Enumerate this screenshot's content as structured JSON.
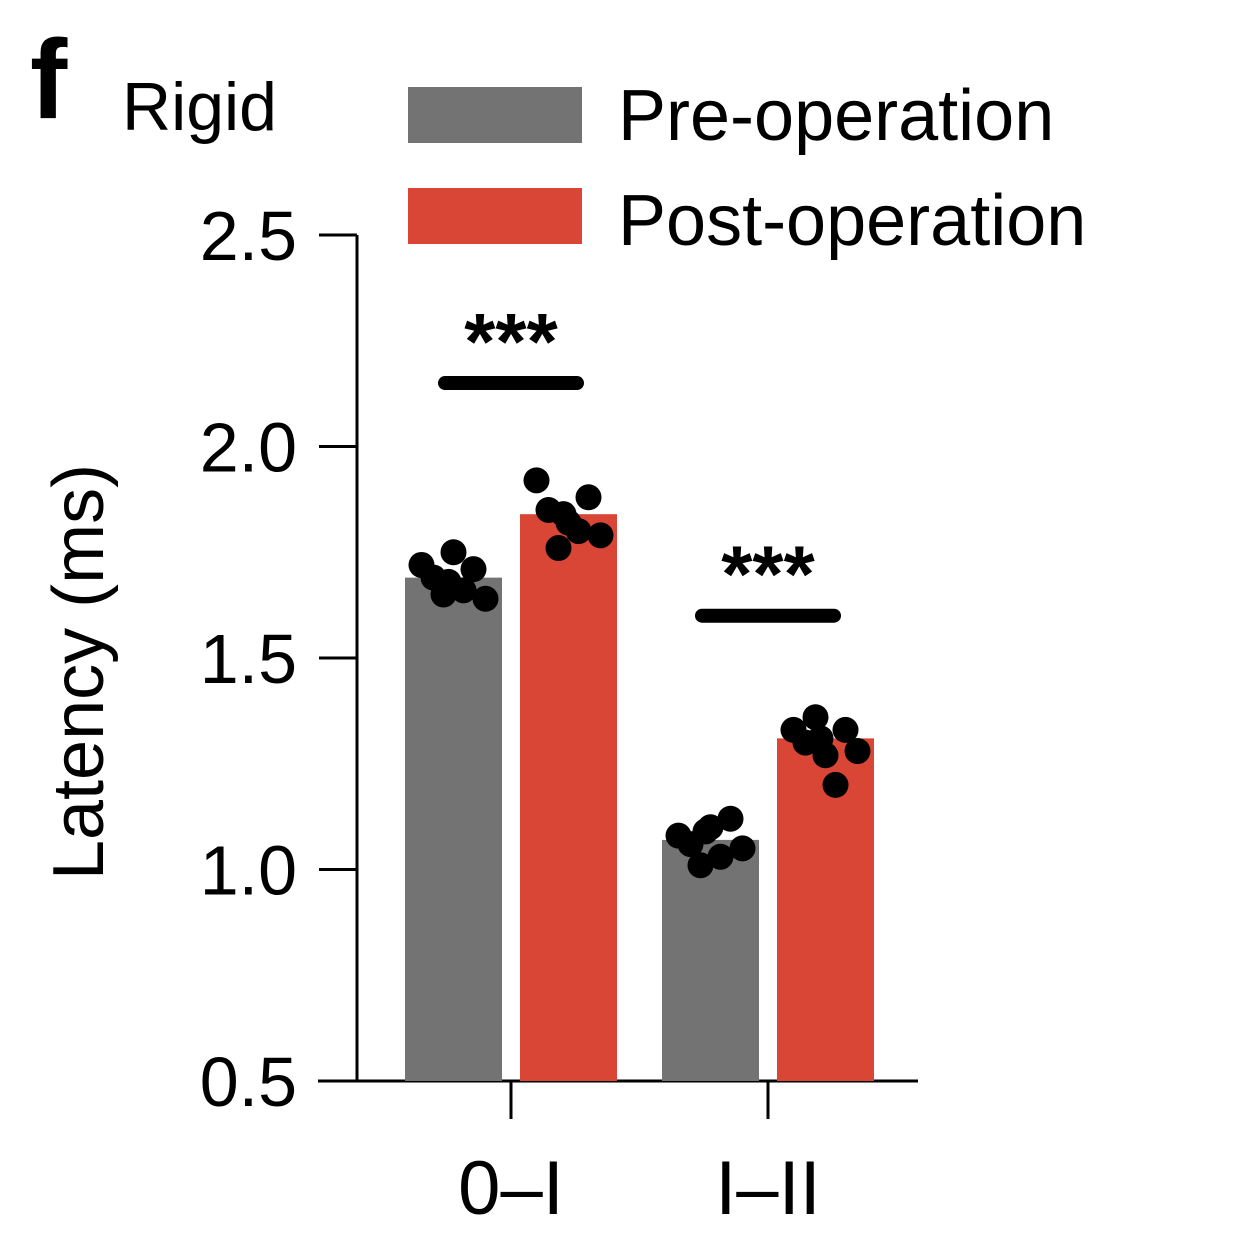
{
  "panel_label": "f",
  "chart_data": {
    "type": "bar",
    "title": "Rigid",
    "xlabel": "",
    "ylabel": "Latency (ms)",
    "ylim": [
      0.5,
      2.5
    ],
    "yticks": [
      "0.5",
      "1.0",
      "1.5",
      "2.0",
      "2.5"
    ],
    "categories": [
      "0–I",
      "I–II"
    ],
    "legend_position": "top-right",
    "series": [
      {
        "name": "Pre-operation",
        "color": "#737373",
        "values": [
          1.69,
          1.07
        ],
        "points": [
          [
            1.72,
            1.69,
            1.65,
            1.75,
            1.66,
            1.71,
            1.64,
            1.68
          ],
          [
            1.08,
            1.06,
            1.01,
            1.1,
            1.03,
            1.12,
            1.05,
            1.09
          ]
        ]
      },
      {
        "name": "Post-operation",
        "color": "#d94636",
        "values": [
          1.84,
          1.31
        ],
        "points": [
          [
            1.92,
            1.85,
            1.76,
            1.82,
            1.8,
            1.88,
            1.79,
            1.84
          ],
          [
            1.33,
            1.3,
            1.36,
            1.27,
            1.2,
            1.33,
            1.28,
            1.31
          ]
        ]
      }
    ],
    "annotations": [
      {
        "category": "0–I",
        "label": "***",
        "level": 2.15
      },
      {
        "category": "I–II",
        "label": "***",
        "level": 1.6
      }
    ]
  }
}
